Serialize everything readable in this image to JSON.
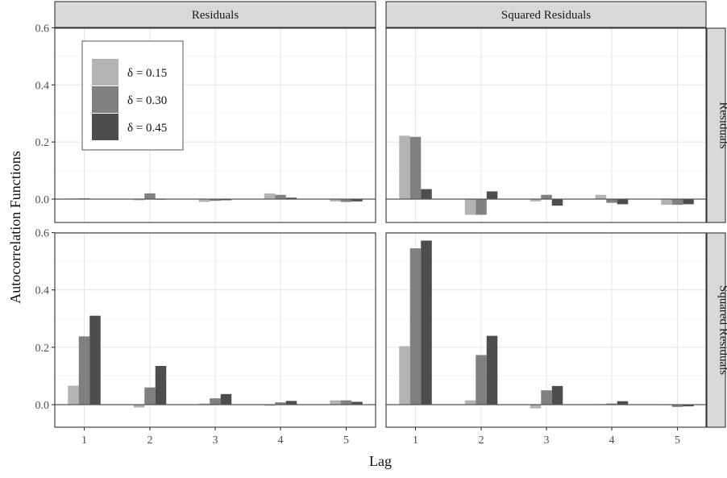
{
  "chart_data": {
    "type": "bar",
    "xlabel": "Lag",
    "ylabel": "Autocorrelation Functions",
    "categories": [
      "1",
      "2",
      "3",
      "4",
      "5"
    ],
    "ylim": [
      -0.06,
      0.62
    ],
    "yticks": [
      0.0,
      0.2,
      0.4,
      0.6
    ],
    "ytick_labels": [
      "0.0",
      "0.2",
      "0.4",
      "0.6"
    ],
    "grid": true,
    "col_strips": [
      "Residuals",
      "Squared Residuals"
    ],
    "row_strips": [
      "Residuals",
      "Squared Residuals"
    ],
    "legend": {
      "position": "top-left inside first panel",
      "entries": [
        {
          "label": "δ = 0.15",
          "color": "#b3b3b3"
        },
        {
          "label": "δ = 0.30",
          "color": "#808080"
        },
        {
          "label": "δ = 0.45",
          "color": "#4d4d4d"
        }
      ]
    },
    "panels": [
      {
        "row": "Residuals",
        "col": "Residuals",
        "series": [
          {
            "name": "δ = 0.15",
            "values": [
              0.002,
              -0.004,
              -0.01,
              0.02,
              -0.008
            ]
          },
          {
            "name": "δ = 0.30",
            "values": [
              0.003,
              0.02,
              -0.006,
              0.015,
              -0.01
            ]
          },
          {
            "name": "δ = 0.45",
            "values": [
              0.001,
              -0.002,
              -0.004,
              0.005,
              -0.008
            ]
          }
        ]
      },
      {
        "row": "Residuals",
        "col": "Squared Residuals",
        "series": [
          {
            "name": "δ = 0.15",
            "values": [
              0.222,
              -0.055,
              -0.008,
              0.015,
              -0.02
            ]
          },
          {
            "name": "δ = 0.30",
            "values": [
              0.218,
              -0.055,
              0.015,
              -0.013,
              -0.02
            ]
          },
          {
            "name": "δ = 0.45",
            "values": [
              0.035,
              0.027,
              -0.023,
              -0.018,
              -0.018
            ]
          }
        ]
      },
      {
        "row": "Squared Residuals",
        "col": "Residuals",
        "series": [
          {
            "name": "δ = 0.15",
            "values": [
              0.066,
              -0.01,
              0.004,
              -0.004,
              0.015
            ]
          },
          {
            "name": "δ = 0.30",
            "values": [
              0.238,
              0.06,
              0.022,
              0.008,
              0.015
            ]
          },
          {
            "name": "δ = 0.45",
            "values": [
              0.31,
              0.135,
              0.037,
              0.013,
              0.01
            ]
          }
        ]
      },
      {
        "row": "Squared Residuals",
        "col": "Squared Residuals",
        "series": [
          {
            "name": "δ = 0.15",
            "values": [
              0.204,
              0.015,
              -0.013,
              0.002,
              -0.002
            ]
          },
          {
            "name": "δ = 0.30",
            "values": [
              0.545,
              0.173,
              0.05,
              0.004,
              -0.008
            ]
          },
          {
            "name": "δ = 0.45",
            "values": [
              0.572,
              0.24,
              0.065,
              0.012,
              -0.006
            ]
          }
        ]
      }
    ]
  }
}
